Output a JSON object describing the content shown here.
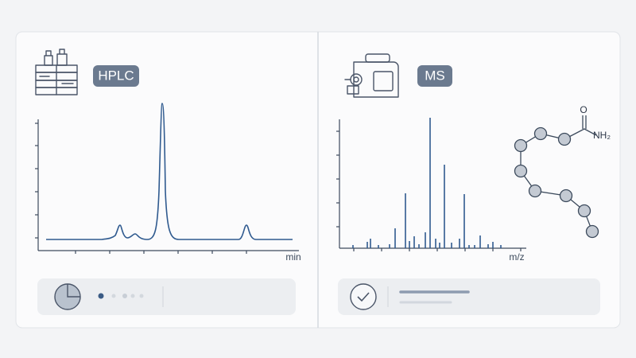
{
  "panels": [
    {
      "badge": "HPLC",
      "x_axis_label": "min"
    },
    {
      "badge": "MS",
      "x_axis_label": "m/z"
    }
  ],
  "molecule": {
    "atom": "O",
    "group": "NH₂"
  }
}
